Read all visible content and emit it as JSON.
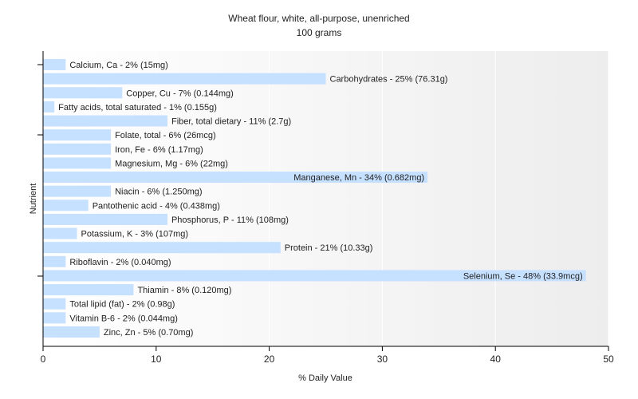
{
  "chart_data": {
    "type": "bar",
    "orientation": "horizontal",
    "title": "Wheat flour, white, all-purpose, unenriched",
    "subtitle": "100 grams",
    "xlabel": "% Daily Value",
    "ylabel": "Nutrient",
    "xlim": [
      0,
      50
    ],
    "xticks": [
      0,
      10,
      20,
      30,
      40,
      50
    ],
    "grid": true,
    "bar_color": "#c6e0ff",
    "categories": [
      "Calcium, Ca",
      "Carbohydrates",
      "Copper, Cu",
      "Fatty acids, total saturated",
      "Fiber, total dietary",
      "Folate, total",
      "Iron, Fe",
      "Magnesium, Mg",
      "Manganese, Mn",
      "Niacin",
      "Pantothenic acid",
      "Phosphorus, P",
      "Potassium, K",
      "Protein",
      "Riboflavin",
      "Selenium, Se",
      "Thiamin",
      "Total lipid (fat)",
      "Vitamin B-6",
      "Zinc, Zn"
    ],
    "values": [
      2,
      25,
      7,
      1,
      11,
      6,
      6,
      6,
      34,
      6,
      4,
      11,
      3,
      21,
      2,
      48,
      8,
      2,
      2,
      5
    ],
    "labels": [
      "Calcium, Ca - 2% (15mg)",
      "Carbohydrates - 25% (76.31g)",
      "Copper, Cu - 7% (0.144mg)",
      "Fatty acids, total saturated - 1% (0.155g)",
      "Fiber, total dietary - 11% (2.7g)",
      "Folate, total - 6% (26mcg)",
      "Iron, Fe - 6% (1.17mg)",
      "Magnesium, Mg - 6% (22mg)",
      "Manganese, Mn - 34% (0.682mg)",
      "Niacin - 6% (1.250mg)",
      "Pantothenic acid - 4% (0.438mg)",
      "Phosphorus, P - 11% (108mg)",
      "Potassium, K - 3% (107mg)",
      "Protein - 21% (10.33g)",
      "Riboflavin - 2% (0.040mg)",
      "Selenium, Se - 48% (33.9mcg)",
      "Thiamin - 8% (0.120mg)",
      "Total lipid (fat) - 2% (0.98g)",
      "Vitamin B-6 - 2% (0.044mg)",
      "Zinc, Zn - 5% (0.70mg)"
    ]
  }
}
